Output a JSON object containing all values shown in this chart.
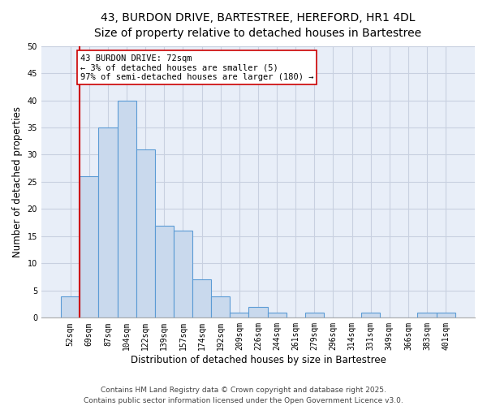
{
  "title_line1": "43, BURDON DRIVE, BARTESTREE, HEREFORD, HR1 4DL",
  "title_line2": "Size of property relative to detached houses in Bartestree",
  "xlabel": "Distribution of detached houses by size in Bartestree",
  "ylabel": "Number of detached properties",
  "categories": [
    "52sqm",
    "69sqm",
    "87sqm",
    "104sqm",
    "122sqm",
    "139sqm",
    "157sqm",
    "174sqm",
    "192sqm",
    "209sqm",
    "226sqm",
    "244sqm",
    "261sqm",
    "279sqm",
    "296sqm",
    "314sqm",
    "331sqm",
    "349sqm",
    "366sqm",
    "383sqm",
    "401sqm"
  ],
  "values": [
    4,
    26,
    35,
    40,
    31,
    17,
    16,
    7,
    4,
    1,
    2,
    1,
    0,
    1,
    0,
    0,
    1,
    0,
    0,
    1,
    1
  ],
  "bar_color": "#c9d9ed",
  "bar_edge_color": "#5b9bd5",
  "bar_edge_width": 0.8,
  "red_line_color": "#cc0000",
  "annotation_line1": "43 BURDON DRIVE: 72sqm",
  "annotation_line2": "← 3% of detached houses are smaller (5)",
  "annotation_line3": "97% of semi-detached houses are larger (180) →",
  "annotation_box_edge": "#cc0000",
  "annotation_box_face": "#ffffff",
  "ylim": [
    0,
    50
  ],
  "yticks": [
    0,
    5,
    10,
    15,
    20,
    25,
    30,
    35,
    40,
    45,
    50
  ],
  "grid_color": "#c8d0e0",
  "background_color": "#e8eef8",
  "footer_line1": "Contains HM Land Registry data © Crown copyright and database right 2025.",
  "footer_line2": "Contains public sector information licensed under the Open Government Licence v3.0.",
  "title_fontsize": 10,
  "subtitle_fontsize": 9,
  "ylabel_fontsize": 8.5,
  "xlabel_fontsize": 8.5,
  "tick_fontsize": 7,
  "annotation_fontsize": 7.5,
  "footer_fontsize": 6.5
}
